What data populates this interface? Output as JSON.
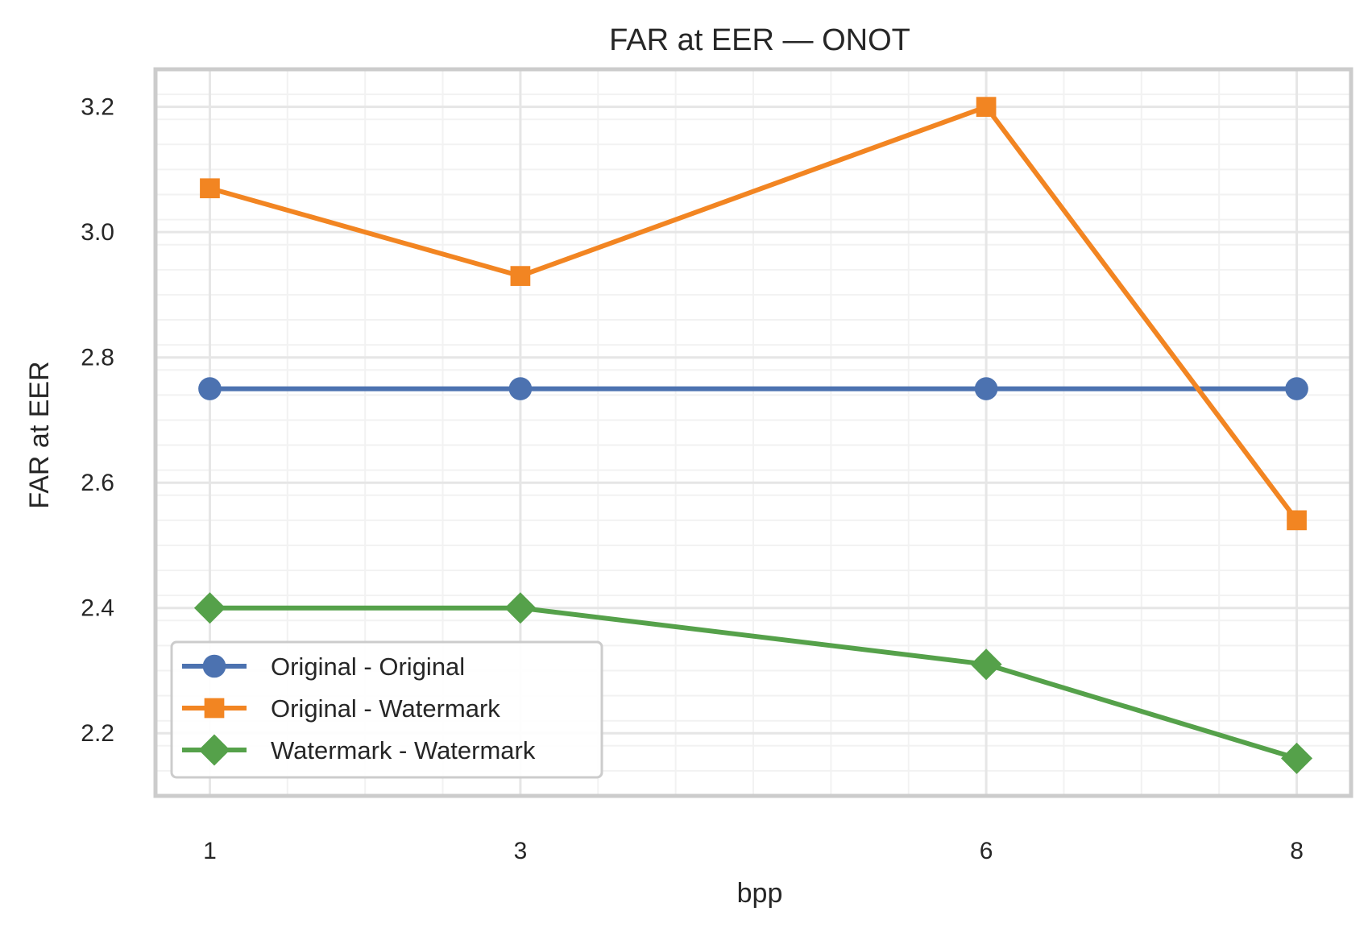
{
  "chart_data": {
    "type": "line",
    "title": "FAR at EER — ONOT",
    "xlabel": "bpp",
    "ylabel": "FAR at EER",
    "x": [
      1,
      3,
      6,
      8
    ],
    "x_tick_labels": [
      "1",
      "3",
      "6",
      "8"
    ],
    "xlim": [
      0.65,
      8.35
    ],
    "ylim": [
      2.1,
      3.26
    ],
    "y_ticks": [
      2.2,
      2.4,
      2.6,
      2.8,
      3.0,
      3.2
    ],
    "y_tick_labels": [
      "2.2",
      "2.4",
      "2.6",
      "2.8",
      "3.0",
      "3.2"
    ],
    "grid": true,
    "legend_position": "lower-left",
    "series": [
      {
        "name": "Original - Original",
        "values": [
          2.75,
          2.75,
          2.75,
          2.75
        ],
        "color": "#4c72b0",
        "marker": "circle"
      },
      {
        "name": "Original - Watermark",
        "values": [
          3.07,
          2.93,
          3.2,
          2.54
        ],
        "color": "#f28522",
        "marker": "square"
      },
      {
        "name": "Watermark - Watermark",
        "values": [
          2.4,
          2.4,
          2.31,
          2.16
        ],
        "color": "#55a14a",
        "marker": "diamond"
      }
    ]
  }
}
